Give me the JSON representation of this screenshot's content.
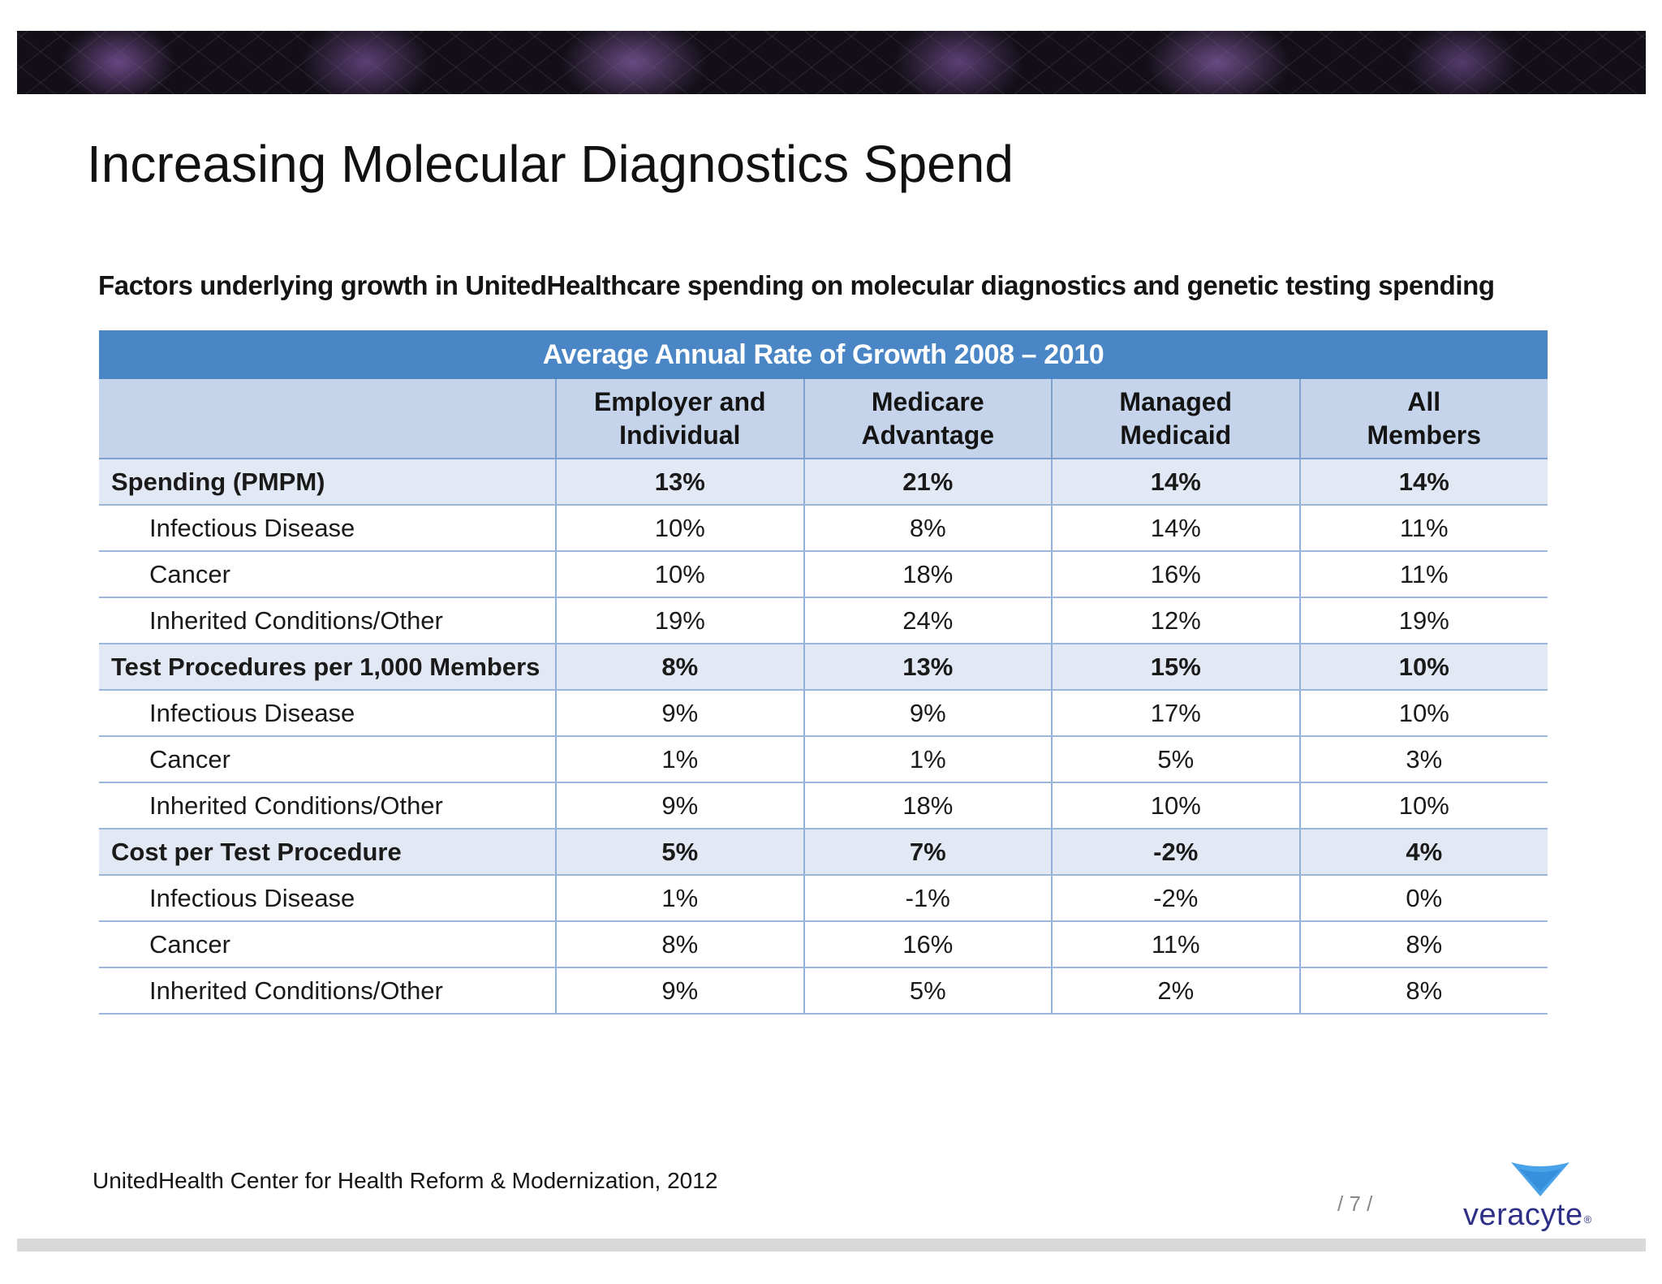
{
  "slide": {
    "title": "Increasing Molecular Diagnostics Spend",
    "source": "UnitedHealth Center for Health Reform & Modernization, 2012",
    "page_number": "/ 7 /",
    "logo_text": "veracyte",
    "logo_reg": "®"
  },
  "table": {
    "title": "Factors underlying growth in UnitedHealthcare spending on molecular diagnostics and genetic testing spending",
    "band": "Average Annual Rate of Growth 2008 – 2010",
    "headers": [
      {
        "line1": "Employer and",
        "line2": "Individual"
      },
      {
        "line1": "Medicare",
        "line2": "Advantage"
      },
      {
        "line1": "Managed",
        "line2": "Medicaid"
      },
      {
        "line1": "All",
        "line2": "Members"
      }
    ],
    "rows": [
      {
        "label": "Spending (PMPM)",
        "values": [
          "13%",
          "21%",
          "14%",
          "14%"
        ]
      },
      {
        "label": "Infectious Disease",
        "values": [
          "10%",
          "8%",
          "14%",
          "11%"
        ]
      },
      {
        "label": "Cancer",
        "values": [
          "10%",
          "18%",
          "16%",
          "11%"
        ]
      },
      {
        "label": "Inherited Conditions/Other",
        "values": [
          "19%",
          "24%",
          "12%",
          "19%"
        ]
      },
      {
        "label": "Test Procedures per 1,000 Members",
        "values": [
          "8%",
          "13%",
          "15%",
          "10%"
        ]
      },
      {
        "label": "Infectious Disease",
        "values": [
          "9%",
          "9%",
          "17%",
          "10%"
        ]
      },
      {
        "label": "Cancer",
        "values": [
          "1%",
          "1%",
          "5%",
          "3%"
        ]
      },
      {
        "label": "Inherited Conditions/Other",
        "values": [
          "9%",
          "18%",
          "10%",
          "10%"
        ]
      },
      {
        "label": "Cost per Test Procedure",
        "values": [
          "5%",
          "7%",
          "-2%",
          "4%"
        ]
      },
      {
        "label": "Infectious Disease",
        "values": [
          "1%",
          "-1%",
          "-2%",
          "0%"
        ]
      },
      {
        "label": "Cancer",
        "values": [
          "8%",
          "16%",
          "11%",
          "8%"
        ]
      },
      {
        "label": "Inherited Conditions/Other",
        "values": [
          "9%",
          "5%",
          "2%",
          "8%"
        ]
      }
    ]
  },
  "colors": {
    "band_blue": "#4a86c5",
    "header_blue": "#c5d4ea",
    "group_row": "#e3e9f4",
    "logo_purple": "#2e2f86",
    "logo_triangle": "#4aa3e8"
  }
}
